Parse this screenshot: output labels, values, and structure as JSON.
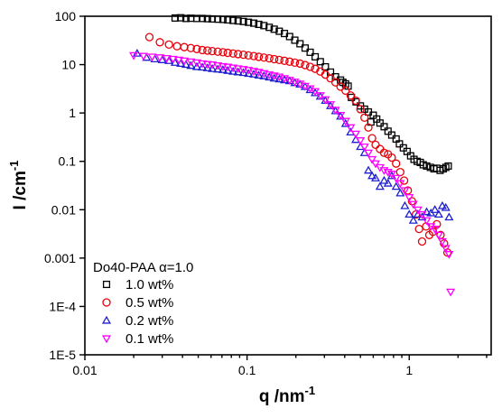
{
  "chart_data": {
    "type": "scatter",
    "x_scale": "log",
    "y_scale": "log",
    "xlim": [
      0.01,
      3.2
    ],
    "ylim": [
      1e-05,
      100
    ],
    "xlabel_main": "q /nm",
    "xlabel_sup": "-1",
    "ylabel_main": "I /cm",
    "ylabel_sup": "-1",
    "x_ticks": [
      {
        "value": 0.01,
        "label": "0.01"
      },
      {
        "value": 0.1,
        "label": "0.1"
      },
      {
        "value": 1,
        "label": "1"
      }
    ],
    "y_ticks": [
      {
        "value": 100,
        "label": "100"
      },
      {
        "value": 10,
        "label": "10"
      },
      {
        "value": 1,
        "label": "1"
      },
      {
        "value": 0.1,
        "label": "0.1"
      },
      {
        "value": 0.01,
        "label": "0.01"
      },
      {
        "value": 0.001,
        "label": "0.001"
      },
      {
        "value": 0.0001,
        "label": "1E-4"
      },
      {
        "value": 1e-05,
        "label": "1E-5"
      }
    ],
    "legend_title": "Do40-PAA α=1.0",
    "legend_position": "bottom-left",
    "series": [
      {
        "name": "1.0 wt%",
        "marker": "square",
        "color": "#000000",
        "points": [
          [
            0.036,
            92
          ],
          [
            0.039,
            93
          ],
          [
            0.042,
            90
          ],
          [
            0.045,
            91
          ],
          [
            0.049,
            90
          ],
          [
            0.053,
            90
          ],
          [
            0.057,
            89
          ],
          [
            0.061,
            88
          ],
          [
            0.066,
            87
          ],
          [
            0.071,
            86
          ],
          [
            0.076,
            84
          ],
          [
            0.082,
            82
          ],
          [
            0.088,
            80
          ],
          [
            0.095,
            78
          ],
          [
            0.102,
            75
          ],
          [
            0.11,
            72
          ],
          [
            0.118,
            68
          ],
          [
            0.127,
            64
          ],
          [
            0.137,
            59
          ],
          [
            0.147,
            54
          ],
          [
            0.158,
            49
          ],
          [
            0.17,
            44
          ],
          [
            0.183,
            38
          ],
          [
            0.197,
            32
          ],
          [
            0.212,
            27
          ],
          [
            0.228,
            22
          ],
          [
            0.245,
            18
          ],
          [
            0.263,
            14.5
          ],
          [
            0.283,
            11.5
          ],
          [
            0.304,
            9
          ],
          [
            0.327,
            7
          ],
          [
            0.351,
            5.6
          ],
          [
            0.377,
            4.8
          ],
          [
            0.39,
            4.3
          ],
          [
            0.405,
            4.0
          ],
          [
            0.42,
            3.6
          ],
          [
            0.44,
            2.1
          ],
          [
            0.47,
            1.7
          ],
          [
            0.5,
            1.4
          ],
          [
            0.53,
            1.2
          ],
          [
            0.56,
            1.05
          ],
          [
            0.58,
            0.65
          ],
          [
            0.6,
            0.9
          ],
          [
            0.63,
            0.75
          ],
          [
            0.66,
            0.62
          ],
          [
            0.7,
            0.52
          ],
          [
            0.74,
            0.42
          ],
          [
            0.78,
            0.35
          ],
          [
            0.83,
            0.29
          ],
          [
            0.87,
            0.23
          ],
          [
            0.92,
            0.19
          ],
          [
            0.97,
            0.16
          ],
          [
            1.02,
            0.13
          ],
          [
            1.07,
            0.11
          ],
          [
            1.12,
            0.1
          ],
          [
            1.17,
            0.095
          ],
          [
            1.22,
            0.085
          ],
          [
            1.28,
            0.08
          ],
          [
            1.35,
            0.075
          ],
          [
            1.42,
            0.07
          ],
          [
            1.48,
            0.072
          ],
          [
            1.55,
            0.065
          ],
          [
            1.62,
            0.07
          ],
          [
            1.68,
            0.075
          ],
          [
            1.74,
            0.08
          ]
        ]
      },
      {
        "name": "0.5 wt%",
        "marker": "circle",
        "color": "#e8000b",
        "points": [
          [
            0.025,
            37
          ],
          [
            0.029,
            29
          ],
          [
            0.033,
            26
          ],
          [
            0.037,
            24
          ],
          [
            0.041,
            23
          ],
          [
            0.045,
            22
          ],
          [
            0.049,
            21
          ],
          [
            0.053,
            20
          ],
          [
            0.057,
            19.5
          ],
          [
            0.061,
            19
          ],
          [
            0.066,
            18.5
          ],
          [
            0.071,
            18
          ],
          [
            0.076,
            17.5
          ],
          [
            0.082,
            17
          ],
          [
            0.088,
            16.5
          ],
          [
            0.095,
            16
          ],
          [
            0.102,
            15.5
          ],
          [
            0.11,
            15
          ],
          [
            0.118,
            14.5
          ],
          [
            0.127,
            14
          ],
          [
            0.137,
            13.5
          ],
          [
            0.147,
            13
          ],
          [
            0.158,
            12.5
          ],
          [
            0.17,
            12
          ],
          [
            0.183,
            11.5
          ],
          [
            0.197,
            11
          ],
          [
            0.212,
            10.5
          ],
          [
            0.228,
            9.8
          ],
          [
            0.245,
            9
          ],
          [
            0.263,
            8.2
          ],
          [
            0.283,
            7.2
          ],
          [
            0.304,
            6.2
          ],
          [
            0.327,
            5.2
          ],
          [
            0.351,
            4.3
          ],
          [
            0.377,
            3.5
          ],
          [
            0.405,
            2.9
          ],
          [
            0.435,
            2.3
          ],
          [
            0.468,
            1.8
          ],
          [
            0.5,
            1.2
          ],
          [
            0.53,
            0.8
          ],
          [
            0.56,
            0.5
          ],
          [
            0.59,
            0.3
          ],
          [
            0.62,
            0.22
          ],
          [
            0.66,
            0.18
          ],
          [
            0.7,
            0.15
          ],
          [
            0.74,
            0.14
          ],
          [
            0.78,
            0.12
          ],
          [
            0.83,
            0.09
          ],
          [
            0.88,
            0.06
          ],
          [
            0.93,
            0.04
          ],
          [
            0.98,
            0.025
          ],
          [
            1.04,
            0.015
          ],
          [
            1.1,
            0.008
          ],
          [
            1.15,
            0.004
          ],
          [
            1.2,
            0.0022
          ],
          [
            1.27,
            0.0045
          ],
          [
            1.33,
            0.003
          ],
          [
            1.4,
            0.0035
          ],
          [
            1.48,
            0.005
          ],
          [
            1.56,
            0.003
          ],
          [
            1.64,
            0.002
          ],
          [
            1.72,
            0.0013
          ]
        ]
      },
      {
        "name": "0.2 wt%",
        "marker": "triangle-up",
        "color": "#1f1fd0",
        "points": [
          [
            0.021,
            17
          ],
          [
            0.024,
            14
          ],
          [
            0.027,
            13
          ],
          [
            0.03,
            12.5
          ],
          [
            0.033,
            12
          ],
          [
            0.036,
            11
          ],
          [
            0.039,
            10.5
          ],
          [
            0.042,
            10
          ],
          [
            0.045,
            9.5
          ],
          [
            0.049,
            9
          ],
          [
            0.053,
            8.8
          ],
          [
            0.057,
            8.5
          ],
          [
            0.061,
            8.2
          ],
          [
            0.066,
            8
          ],
          [
            0.071,
            7.8
          ],
          [
            0.076,
            7.5
          ],
          [
            0.082,
            7.2
          ],
          [
            0.088,
            7
          ],
          [
            0.095,
            6.8
          ],
          [
            0.102,
            6.5
          ],
          [
            0.11,
            6.3
          ],
          [
            0.118,
            6
          ],
          [
            0.127,
            5.8
          ],
          [
            0.137,
            5.5
          ],
          [
            0.147,
            5.2
          ],
          [
            0.158,
            5
          ],
          [
            0.17,
            4.8
          ],
          [
            0.183,
            4.6
          ],
          [
            0.197,
            4.2
          ],
          [
            0.212,
            3.9
          ],
          [
            0.228,
            3.5
          ],
          [
            0.245,
            3
          ],
          [
            0.263,
            2.6
          ],
          [
            0.283,
            2.2
          ],
          [
            0.304,
            1.8
          ],
          [
            0.327,
            1.4
          ],
          [
            0.351,
            1.1
          ],
          [
            0.377,
            0.85
          ],
          [
            0.405,
            0.6
          ],
          [
            0.435,
            0.4
          ],
          [
            0.468,
            0.28
          ],
          [
            0.5,
            0.2
          ],
          [
            0.53,
            0.15
          ],
          [
            0.56,
            0.065
          ],
          [
            0.59,
            0.05
          ],
          [
            0.62,
            0.045
          ],
          [
            0.66,
            0.03
          ],
          [
            0.7,
            0.04
          ],
          [
            0.74,
            0.035
          ],
          [
            0.78,
            0.05
          ],
          [
            0.83,
            0.03
          ],
          [
            0.88,
            0.022
          ],
          [
            0.94,
            0.012
          ],
          [
            1.0,
            0.008
          ],
          [
            1.06,
            0.006
          ],
          [
            1.13,
            0.008
          ],
          [
            1.2,
            0.007
          ],
          [
            1.28,
            0.009
          ],
          [
            1.36,
            0.0085
          ],
          [
            1.44,
            0.01
          ],
          [
            1.52,
            0.008
          ],
          [
            1.6,
            0.012
          ],
          [
            1.68,
            0.011
          ],
          [
            1.76,
            0.007
          ]
        ]
      },
      {
        "name": "0.1 wt%",
        "marker": "triangle-down",
        "color": "#ff00ff",
        "points": [
          [
            0.02,
            15.5
          ],
          [
            0.023,
            15
          ],
          [
            0.026,
            14.5
          ],
          [
            0.029,
            14
          ],
          [
            0.032,
            13.5
          ],
          [
            0.035,
            13
          ],
          [
            0.038,
            12.5
          ],
          [
            0.041,
            12
          ],
          [
            0.045,
            11.5
          ],
          [
            0.049,
            11
          ],
          [
            0.053,
            10.5
          ],
          [
            0.057,
            10.2
          ],
          [
            0.061,
            10
          ],
          [
            0.066,
            9.6
          ],
          [
            0.071,
            9.2
          ],
          [
            0.076,
            9
          ],
          [
            0.082,
            8.6
          ],
          [
            0.088,
            8.3
          ],
          [
            0.095,
            8
          ],
          [
            0.102,
            7.7
          ],
          [
            0.11,
            7.3
          ],
          [
            0.118,
            7
          ],
          [
            0.127,
            6.6
          ],
          [
            0.137,
            6.2
          ],
          [
            0.147,
            5.9
          ],
          [
            0.158,
            5.6
          ],
          [
            0.17,
            5.2
          ],
          [
            0.183,
            4.8
          ],
          [
            0.197,
            4.4
          ],
          [
            0.212,
            4
          ],
          [
            0.228,
            3.6
          ],
          [
            0.245,
            3.2
          ],
          [
            0.263,
            2.8
          ],
          [
            0.283,
            2.3
          ],
          [
            0.304,
            1.9
          ],
          [
            0.327,
            1.5
          ],
          [
            0.351,
            1.15
          ],
          [
            0.377,
            0.9
          ],
          [
            0.405,
            0.68
          ],
          [
            0.435,
            0.5
          ],
          [
            0.468,
            0.37
          ],
          [
            0.5,
            0.27
          ],
          [
            0.53,
            0.2
          ],
          [
            0.56,
            0.15
          ],
          [
            0.59,
            0.11
          ],
          [
            0.62,
            0.09
          ],
          [
            0.66,
            0.075
          ],
          [
            0.7,
            0.065
          ],
          [
            0.74,
            0.06
          ],
          [
            0.78,
            0.055
          ],
          [
            0.83,
            0.045
          ],
          [
            0.88,
            0.035
          ],
          [
            0.94,
            0.025
          ],
          [
            1.0,
            0.018
          ],
          [
            1.06,
            0.013
          ],
          [
            1.13,
            0.01
          ],
          [
            1.2,
            0.008
          ],
          [
            1.28,
            0.006
          ],
          [
            1.36,
            0.0045
          ],
          [
            1.44,
            0.004
          ],
          [
            1.52,
            0.003
          ],
          [
            1.6,
            0.0022
          ],
          [
            1.68,
            0.0016
          ],
          [
            1.76,
            0.0012
          ],
          [
            1.8,
            0.0002
          ]
        ]
      }
    ]
  }
}
